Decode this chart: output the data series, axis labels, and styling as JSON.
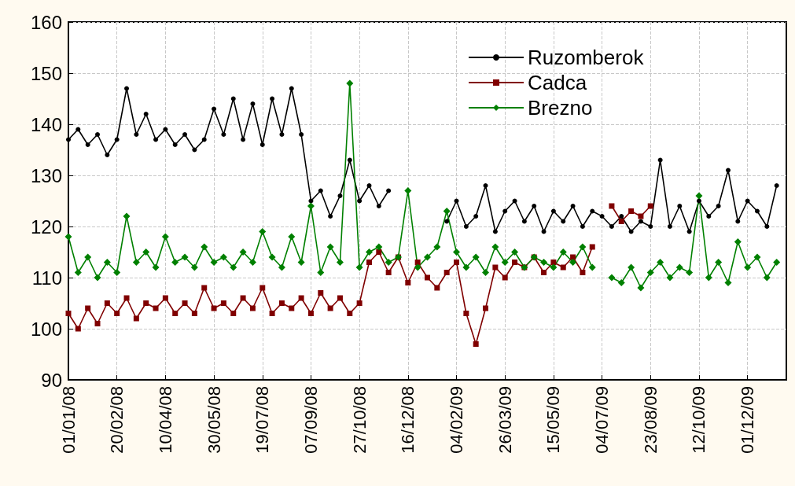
{
  "chart_data": {
    "type": "line",
    "grid": true,
    "legend": "top right",
    "line_style": "solid",
    "xlim": [
      "2008-01-01",
      "2010-01-10"
    ],
    "xticks": [
      {
        "value": "2008-01-01",
        "label": "01/01/08"
      },
      {
        "value": "2008-02-20",
        "label": "20/02/08"
      },
      {
        "value": "2008-04-10",
        "label": "10/04/08"
      },
      {
        "value": "2008-05-30",
        "label": "30/05/08"
      },
      {
        "value": "2008-07-19",
        "label": "19/07/08"
      },
      {
        "value": "2008-09-07",
        "label": "07/09/08"
      },
      {
        "value": "2008-10-27",
        "label": "27/10/08"
      },
      {
        "value": "2008-12-16",
        "label": "16/12/08"
      },
      {
        "value": "2009-02-04",
        "label": "04/02/09"
      },
      {
        "value": "2009-03-26",
        "label": "26/03/09"
      },
      {
        "value": "2009-05-15",
        "label": "15/05/09"
      },
      {
        "value": "2009-07-04",
        "label": "04/07/09"
      },
      {
        "value": "2009-08-23",
        "label": "23/08/09"
      },
      {
        "value": "2009-10-12",
        "label": "12/10/09"
      },
      {
        "value": "2009-12-01",
        "label": "01/12/09"
      }
    ],
    "ylim": [
      90,
      160
    ],
    "yticks": [
      90,
      100,
      110,
      120,
      130,
      140,
      150,
      160
    ],
    "x": [
      "2008-01-01",
      "2008-01-11",
      "2008-01-21",
      "2008-01-31",
      "2008-02-10",
      "2008-02-20",
      "2008-03-01",
      "2008-03-11",
      "2008-03-21",
      "2008-03-31",
      "2008-04-10",
      "2008-04-20",
      "2008-04-30",
      "2008-05-10",
      "2008-05-20",
      "2008-05-30",
      "2008-06-09",
      "2008-06-19",
      "2008-06-29",
      "2008-07-09",
      "2008-07-19",
      "2008-07-29",
      "2008-08-08",
      "2008-08-18",
      "2008-08-28",
      "2008-09-07",
      "2008-09-17",
      "2008-09-27",
      "2008-10-07",
      "2008-10-17",
      "2008-10-27",
      "2008-11-06",
      "2008-11-16",
      "2008-11-26",
      "2008-12-06",
      "2008-12-16",
      "2008-12-26",
      "2009-01-05",
      "2009-01-15",
      "2009-01-25",
      "2009-02-04",
      "2009-02-14",
      "2009-02-24",
      "2009-03-06",
      "2009-03-16",
      "2009-03-26",
      "2009-04-05",
      "2009-04-15",
      "2009-04-25",
      "2009-05-05",
      "2009-05-15",
      "2009-05-25",
      "2009-06-04",
      "2009-06-14",
      "2009-06-24",
      "2009-07-04",
      "2009-07-14",
      "2009-07-24",
      "2009-08-03",
      "2009-08-13",
      "2009-08-23",
      "2009-09-02",
      "2009-09-12",
      "2009-09-22",
      "2009-10-02",
      "2009-10-12",
      "2009-10-22",
      "2009-11-01",
      "2009-11-11",
      "2009-11-21",
      "2009-12-01",
      "2009-12-11",
      "2009-12-21",
      "2009-12-31"
    ],
    "series": [
      {
        "name": "Ruzomberok",
        "color": "#000000",
        "marker": "circle",
        "values": [
          137,
          139,
          136,
          138,
          134,
          137,
          147,
          138,
          142,
          137,
          139,
          136,
          138,
          135,
          137,
          143,
          138,
          145,
          137,
          144,
          136,
          145,
          138,
          147,
          138,
          125,
          127,
          122,
          126,
          133,
          125,
          128,
          124,
          127,
          null,
          null,
          null,
          null,
          null,
          121,
          125,
          120,
          122,
          128,
          119,
          123,
          125,
          121,
          124,
          119,
          123,
          121,
          124,
          120,
          123,
          122,
          120,
          122,
          119,
          121,
          120,
          133,
          120,
          124,
          119,
          125,
          122,
          124,
          131,
          121,
          125,
          123,
          120,
          128
        ]
      },
      {
        "name": "Cadca",
        "color": "#800000",
        "marker": "square",
        "values": [
          103,
          100,
          104,
          101,
          105,
          103,
          106,
          102,
          105,
          104,
          106,
          103,
          105,
          103,
          108,
          104,
          105,
          103,
          106,
          104,
          108,
          103,
          105,
          104,
          106,
          103,
          107,
          104,
          106,
          103,
          105,
          113,
          115,
          111,
          114,
          109,
          113,
          110,
          108,
          111,
          113,
          103,
          97,
          104,
          112,
          110,
          113,
          112,
          114,
          111,
          113,
          112,
          114,
          111,
          116,
          null,
          124,
          121,
          123,
          122,
          124,
          null,
          null,
          null,
          null,
          null,
          null,
          null,
          null,
          null,
          null,
          null,
          null,
          null
        ]
      },
      {
        "name": "Brezno",
        "color": "#008000",
        "marker": "diamond",
        "values": [
          118,
          111,
          114,
          110,
          113,
          111,
          122,
          113,
          115,
          112,
          118,
          113,
          114,
          112,
          116,
          113,
          114,
          112,
          115,
          113,
          119,
          114,
          112,
          118,
          113,
          124,
          111,
          116,
          113,
          148,
          112,
          115,
          116,
          113,
          114,
          127,
          112,
          114,
          116,
          123,
          115,
          112,
          114,
          111,
          116,
          113,
          115,
          112,
          114,
          113,
          112,
          115,
          113,
          116,
          112,
          null,
          110,
          109,
          112,
          108,
          111,
          113,
          110,
          112,
          111,
          126,
          110,
          113,
          109,
          117,
          112,
          114,
          110,
          113
        ]
      }
    ]
  }
}
